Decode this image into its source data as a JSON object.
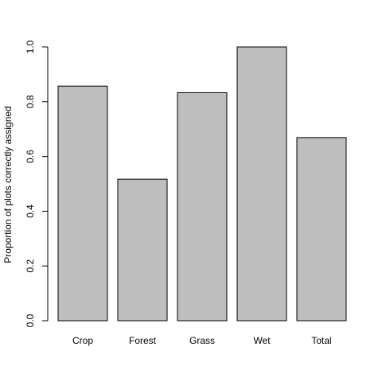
{
  "chart_data": {
    "type": "bar",
    "title": "",
    "xlabel": "",
    "ylabel": "Proportion of plots correctly assigned",
    "categories": [
      "Crop",
      "Forest",
      "Grass",
      "Wet",
      "Total"
    ],
    "values": [
      0.857,
      0.517,
      0.833,
      1.0,
      0.669
    ],
    "ylim": [
      0,
      1
    ],
    "yticks": [
      "0.0",
      "0.2",
      "0.4",
      "0.6",
      "0.8",
      "1.0"
    ],
    "grid": false,
    "bar_color": "#bebebe",
    "bar_border_color": "#000000"
  }
}
